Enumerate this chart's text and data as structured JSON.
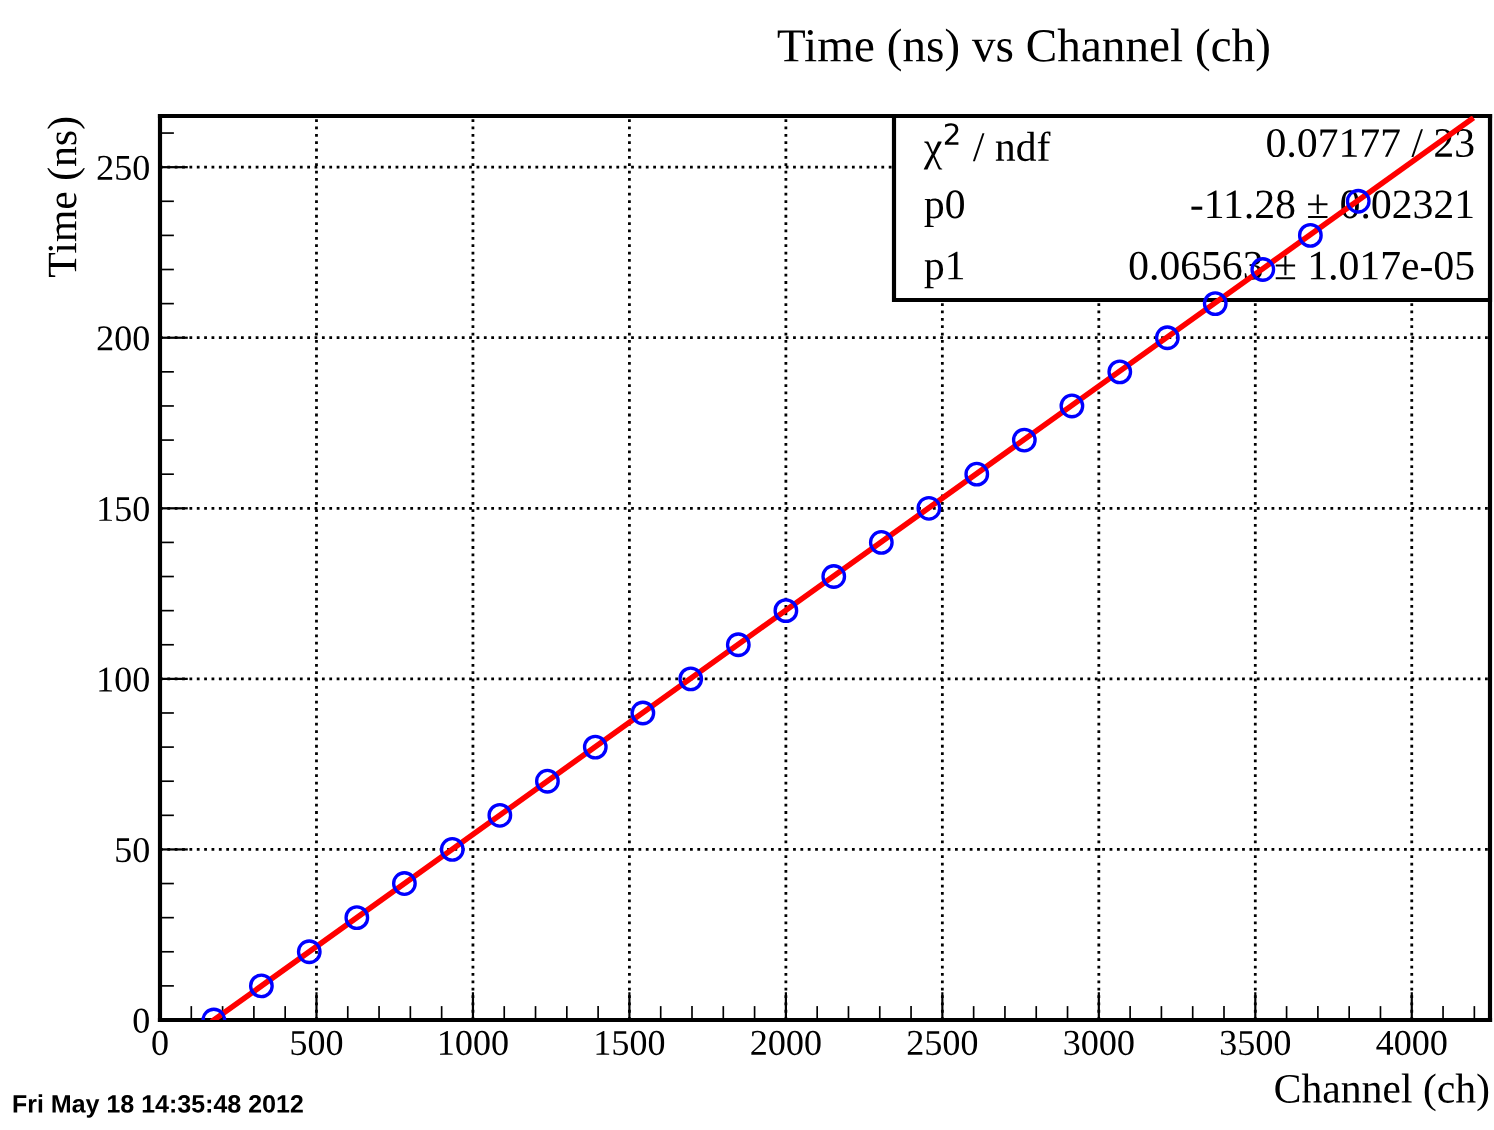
{
  "chart_data": {
    "type": "scatter",
    "title": "Time (ns) vs Channel (ch)",
    "xlabel": "Channel (ch)",
    "ylabel": "Time (ns)",
    "xlim": [
      0,
      4250
    ],
    "ylim": [
      0,
      265
    ],
    "xticks": [
      0,
      500,
      1000,
      1500,
      2000,
      2500,
      3000,
      3500,
      4000
    ],
    "yticks": [
      0,
      50,
      100,
      150,
      200,
      250
    ],
    "grid": true,
    "marker": "circle",
    "series": [
      {
        "color": "#0000ff",
        "x": [
          172,
          324,
          477,
          629,
          781,
          934,
          1086,
          1238,
          1391,
          1543,
          1696,
          1848,
          2000,
          2153,
          2305,
          2457,
          2610,
          2762,
          2914,
          3067,
          3219,
          3372,
          3524,
          3676,
          3829
        ],
        "values": [
          0,
          10,
          20,
          30,
          40,
          50,
          60,
          70,
          80,
          90,
          100,
          110,
          120,
          130,
          140,
          150,
          160,
          170,
          180,
          190,
          200,
          210,
          220,
          230,
          240
        ]
      },
      {
        "type": "line",
        "color": "#ff0000",
        "marker": "none",
        "line_style": "solid",
        "x": [
          172,
          4190
        ],
        "values": [
          0,
          264
        ]
      }
    ],
    "annotations": [
      "χ$^{2}$ / ndf",
      "0.07177 / 23",
      "p0",
      "-11.28 ± 0.02321",
      "p1",
      "0.06563 ± 1.017e-05",
      "Fri May 18 14:35:48 2012"
    ]
  }
}
